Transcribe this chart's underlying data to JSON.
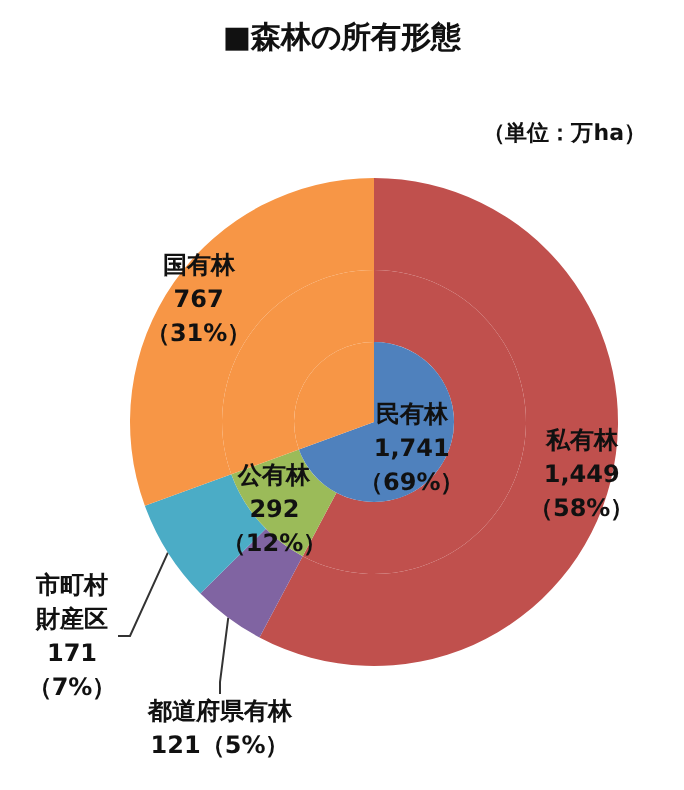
{
  "chart_data": [
    {
      "type": "pie",
      "legend": false,
      "categories": [
        "民有林",
        null
      ],
      "values": [
        1741,
        767
      ],
      "colors": [
        "#4f81bd",
        "#f79646"
      ],
      "value_labels": [
        "1,741\n（69%）",
        null
      ]
    },
    {
      "type": "donut",
      "legend": false,
      "categories": [
        null,
        "公有林",
        null
      ],
      "values": [
        1449,
        292,
        767
      ],
      "colors": [
        "#c0504d",
        "#9bbb59",
        "#f79646"
      ],
      "value_labels": [
        null,
        "292\n（12%）",
        null
      ]
    },
    {
      "type": "donut",
      "title": "■森林の所有形態",
      "subtitle": "（単位：万ha）",
      "legend": false,
      "categories": [
        "私有林",
        "都道府県有林",
        "市町村財産区",
        "国有林"
      ],
      "values": [
        1449,
        121,
        171,
        767
      ],
      "colors": [
        "#c0504d",
        "#8064a2",
        "#4bacc6",
        "#f79646"
      ],
      "value_labels": [
        "1,449\n（58%）",
        "121（5%）",
        "171\n（7%）",
        "767\n（31%）"
      ]
    }
  ]
}
